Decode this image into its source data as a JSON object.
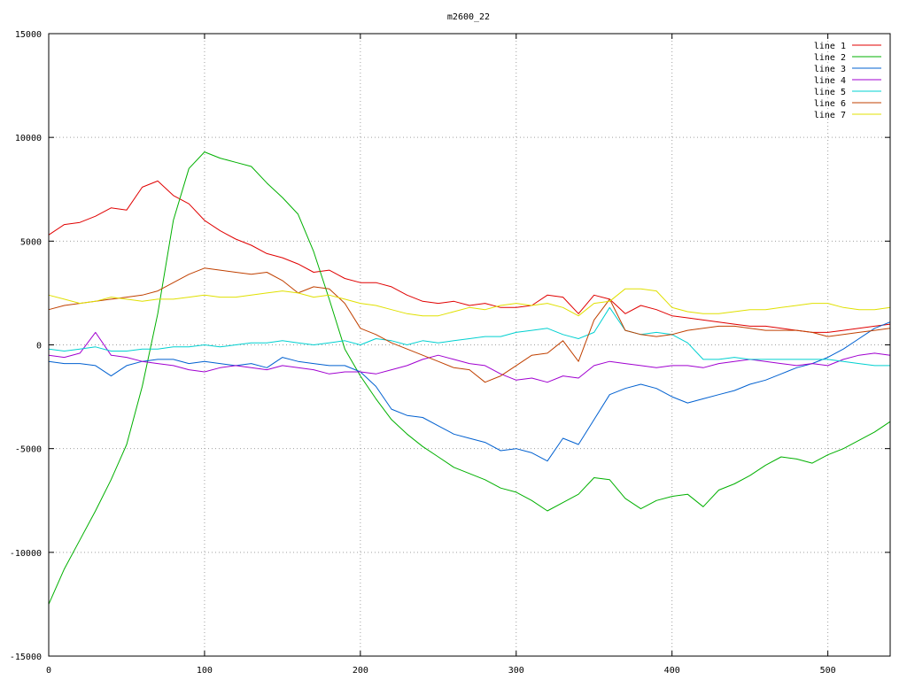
{
  "chart_data": {
    "type": "line",
    "title": "m2600_22",
    "xlabel": "",
    "ylabel": "",
    "xlim": [
      0,
      540
    ],
    "ylim": [
      -15000,
      15000
    ],
    "x_ticks": [
      0,
      100,
      200,
      300,
      400,
      500
    ],
    "y_ticks": [
      -15000,
      -10000,
      -5000,
      0,
      5000,
      10000,
      15000
    ],
    "grid": true,
    "legend_position": "top-right",
    "x": [
      0,
      10,
      20,
      30,
      40,
      50,
      60,
      70,
      80,
      90,
      100,
      110,
      120,
      130,
      140,
      150,
      160,
      170,
      180,
      190,
      200,
      210,
      220,
      230,
      240,
      250,
      260,
      270,
      280,
      290,
      300,
      310,
      320,
      330,
      340,
      350,
      360,
      370,
      380,
      390,
      400,
      410,
      420,
      430,
      440,
      450,
      460,
      470,
      480,
      490,
      500,
      510,
      520,
      530,
      540
    ],
    "series": [
      {
        "name": "line 1",
        "color": "#e00000",
        "values": [
          5300,
          5800,
          5900,
          6200,
          6600,
          6500,
          7600,
          7900,
          7200,
          6800,
          6000,
          5500,
          5100,
          4800,
          4400,
          4200,
          3900,
          3500,
          3600,
          3200,
          3000,
          3000,
          2800,
          2400,
          2100,
          2000,
          2100,
          1900,
          2000,
          1800,
          1800,
          1900,
          2400,
          2300,
          1500,
          2400,
          2200,
          1500,
          1900,
          1700,
          1400,
          1300,
          1200,
          1100,
          1000,
          900,
          900,
          800,
          700,
          600,
          600,
          700,
          800,
          900,
          1000
        ]
      },
      {
        "name": "line 2",
        "color": "#00b000",
        "values": [
          -12500,
          -10800,
          -9400,
          -8000,
          -6500,
          -4800,
          -2000,
          1500,
          6000,
          8500,
          9300,
          9000,
          8800,
          8600,
          7800,
          7100,
          6300,
          4500,
          2200,
          -200,
          -1500,
          -2600,
          -3600,
          -4300,
          -4900,
          -5400,
          -5900,
          -6200,
          -6500,
          -6900,
          -7100,
          -7500,
          -8000,
          -7600,
          -7200,
          -6400,
          -6500,
          -7400,
          -7900,
          -7500,
          -7300,
          -7200,
          -7800,
          -7000,
          -6700,
          -6300,
          -5800,
          -5400,
          -5500,
          -5700,
          -5300,
          -5000,
          -4600,
          -4200,
          -3700
        ]
      },
      {
        "name": "line 3",
        "color": "#0060d0",
        "values": [
          -800,
          -900,
          -900,
          -1000,
          -1500,
          -1000,
          -800,
          -700,
          -700,
          -900,
          -800,
          -900,
          -1000,
          -900,
          -1100,
          -600,
          -800,
          -900,
          -1000,
          -1000,
          -1300,
          -2000,
          -3100,
          -3400,
          -3500,
          -3900,
          -4300,
          -4500,
          -4700,
          -5100,
          -5000,
          -5200,
          -5600,
          -4500,
          -4800,
          -3600,
          -2400,
          -2100,
          -1900,
          -2100,
          -2500,
          -2800,
          -2600,
          -2400,
          -2200,
          -1900,
          -1700,
          -1400,
          -1100,
          -900,
          -600,
          -200,
          300,
          800,
          1100
        ]
      },
      {
        "name": "line 4",
        "color": "#a000d0",
        "values": [
          -500,
          -600,
          -400,
          600,
          -500,
          -600,
          -800,
          -900,
          -1000,
          -1200,
          -1300,
          -1100,
          -1000,
          -1100,
          -1200,
          -1000,
          -1100,
          -1200,
          -1400,
          -1300,
          -1300,
          -1400,
          -1200,
          -1000,
          -700,
          -500,
          -700,
          -900,
          -1000,
          -1400,
          -1700,
          -1600,
          -1800,
          -1500,
          -1600,
          -1000,
          -800,
          -900,
          -1000,
          -1100,
          -1000,
          -1000,
          -1100,
          -900,
          -800,
          -700,
          -800,
          -900,
          -1000,
          -900,
          -1000,
          -700,
          -500,
          -400,
          -500
        ]
      },
      {
        "name": "line 5",
        "color": "#00d0d0",
        "values": [
          -200,
          -300,
          -200,
          -100,
          -300,
          -300,
          -200,
          -200,
          -100,
          -100,
          0,
          -100,
          0,
          100,
          100,
          200,
          100,
          0,
          100,
          200,
          0,
          300,
          200,
          0,
          200,
          100,
          200,
          300,
          400,
          400,
          600,
          700,
          800,
          500,
          300,
          600,
          1800,
          700,
          500,
          600,
          500,
          100,
          -700,
          -700,
          -600,
          -700,
          -700,
          -700,
          -700,
          -700,
          -700,
          -800,
          -900,
          -1000,
          -1000
        ]
      },
      {
        "name": "line 6",
        "color": "#c04000",
        "values": [
          1700,
          1900,
          2000,
          2100,
          2200,
          2300,
          2400,
          2600,
          3000,
          3400,
          3700,
          3600,
          3500,
          3400,
          3500,
          3100,
          2500,
          2800,
          2700,
          2000,
          800,
          500,
          100,
          -200,
          -500,
          -800,
          -1100,
          -1200,
          -1800,
          -1500,
          -1000,
          -500,
          -400,
          200,
          -800,
          1200,
          2200,
          700,
          500,
          400,
          500,
          700,
          800,
          900,
          900,
          800,
          700,
          700,
          700,
          600,
          400,
          500,
          600,
          700,
          800
        ]
      },
      {
        "name": "line 7",
        "color": "#e0e000",
        "values": [
          2400,
          2200,
          2000,
          2100,
          2300,
          2200,
          2100,
          2200,
          2200,
          2300,
          2400,
          2300,
          2300,
          2400,
          2500,
          2600,
          2500,
          2300,
          2400,
          2200,
          2000,
          1900,
          1700,
          1500,
          1400,
          1400,
          1600,
          1800,
          1700,
          1900,
          2000,
          1900,
          2000,
          1800,
          1400,
          2000,
          2100,
          2700,
          2700,
          2600,
          1800,
          1600,
          1500,
          1500,
          1600,
          1700,
          1700,
          1800,
          1900,
          2000,
          2000,
          1800,
          1700,
          1700,
          1800
        ]
      }
    ]
  }
}
